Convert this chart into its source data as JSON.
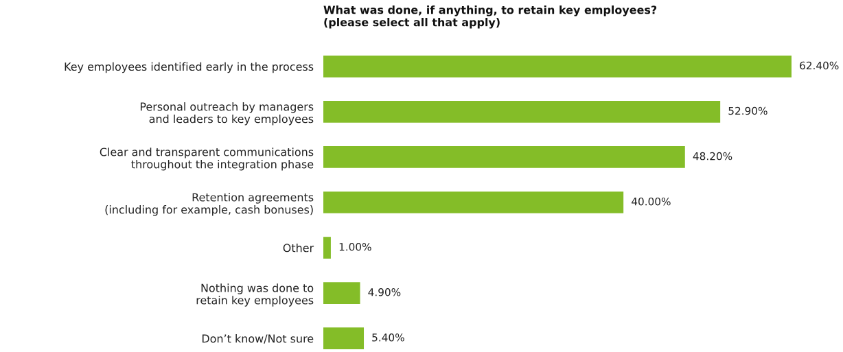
{
  "chart_data": {
    "type": "bar",
    "orientation": "horizontal",
    "title": "What was done, if anything, to retain key employees?\n(please select all that apply)",
    "categories": [
      "Key employees identified early in the process",
      "Personal outreach by managers\nand leaders to key employees",
      "Clear and transparent communications\nthroughout the integration phase",
      "Retention agreements\n(including for example, cash bonuses)",
      "Other",
      "Nothing was done to\nretain key employees",
      "Don’t know/Not sure"
    ],
    "values": [
      62.4,
      52.9,
      48.2,
      40.0,
      1.0,
      4.9,
      5.4
    ],
    "value_labels": [
      "62.40%",
      "52.90%",
      "48.20%",
      "40.00%",
      "1.00%",
      "4.90%",
      "5.40%"
    ],
    "color": "#84bd28",
    "grid": false,
    "legend": false
  }
}
